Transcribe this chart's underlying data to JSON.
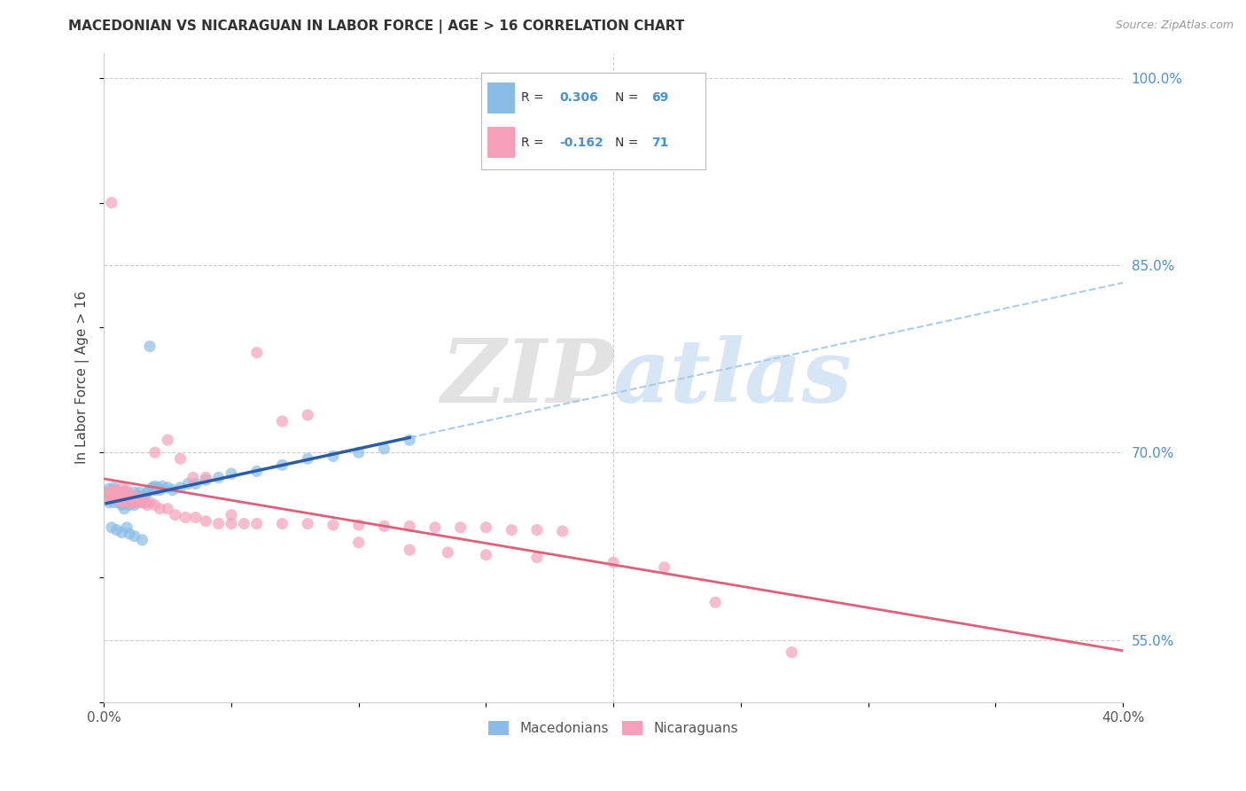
{
  "title": "MACEDONIAN VS NICARAGUAN IN LABOR FORCE | AGE > 16 CORRELATION CHART",
  "source": "Source: ZipAtlas.com",
  "ylabel": "In Labor Force | Age > 16",
  "xlim": [
    0.0,
    0.4
  ],
  "ylim": [
    0.5,
    1.02
  ],
  "xticks": [
    0.0,
    0.05,
    0.1,
    0.15,
    0.2,
    0.25,
    0.3,
    0.35,
    0.4
  ],
  "xticklabels": [
    "0.0%",
    "",
    "",
    "",
    "",
    "",
    "",
    "",
    "40.0%"
  ],
  "yticks_right": [
    0.55,
    0.7,
    0.85,
    1.0
  ],
  "ytick_labels_right": [
    "55.0%",
    "70.0%",
    "85.0%",
    "100.0%"
  ],
  "macedonian_color": "#89bde8",
  "nicaraguan_color": "#f5a0b8",
  "macedonian_line_color": "#2a5caa",
  "nicaraguan_line_color": "#e0607a",
  "dashed_line_color": "#a8ccee",
  "watermark_zip": "ZIP",
  "watermark_atlas": "atlas",
  "legend_items": [
    {
      "color": "#89bde8",
      "r": "R = ",
      "r_val": "0.306",
      "n": "  N = ",
      "n_val": "69"
    },
    {
      "color": "#f5a0b8",
      "r": "R = ",
      "r_val": "-0.162",
      "n": "  N = ",
      "n_val": "71"
    }
  ],
  "mac_x": [
    0.001,
    0.002,
    0.002,
    0.003,
    0.003,
    0.004,
    0.004,
    0.004,
    0.005,
    0.005,
    0.005,
    0.006,
    0.006,
    0.006,
    0.007,
    0.007,
    0.007,
    0.008,
    0.008,
    0.008,
    0.009,
    0.009,
    0.009,
    0.01,
    0.01,
    0.01,
    0.011,
    0.011,
    0.012,
    0.012,
    0.012,
    0.013,
    0.013,
    0.014,
    0.014,
    0.015,
    0.015,
    0.016,
    0.017,
    0.018,
    0.019,
    0.02,
    0.02,
    0.021,
    0.022,
    0.023,
    0.025,
    0.027,
    0.03,
    0.033,
    0.036,
    0.04,
    0.045,
    0.05,
    0.06,
    0.07,
    0.08,
    0.09,
    0.1,
    0.11,
    0.12,
    0.003,
    0.005,
    0.007,
    0.009,
    0.01,
    0.012,
    0.015,
    0.018
  ],
  "mac_y": [
    0.668,
    0.671,
    0.66,
    0.665,
    0.668,
    0.665,
    0.66,
    0.672,
    0.665,
    0.663,
    0.668,
    0.66,
    0.665,
    0.668,
    0.658,
    0.663,
    0.668,
    0.655,
    0.66,
    0.665,
    0.66,
    0.663,
    0.668,
    0.658,
    0.662,
    0.665,
    0.66,
    0.665,
    0.658,
    0.663,
    0.668,
    0.66,
    0.665,
    0.663,
    0.668,
    0.66,
    0.665,
    0.665,
    0.668,
    0.67,
    0.672,
    0.67,
    0.673,
    0.672,
    0.67,
    0.673,
    0.672,
    0.67,
    0.672,
    0.675,
    0.675,
    0.678,
    0.68,
    0.683,
    0.685,
    0.69,
    0.695,
    0.697,
    0.7,
    0.703,
    0.71,
    0.64,
    0.638,
    0.636,
    0.64,
    0.635,
    0.633,
    0.63,
    0.785
  ],
  "nic_x": [
    0.001,
    0.002,
    0.003,
    0.003,
    0.004,
    0.004,
    0.005,
    0.005,
    0.006,
    0.006,
    0.007,
    0.007,
    0.008,
    0.008,
    0.009,
    0.01,
    0.01,
    0.011,
    0.012,
    0.013,
    0.014,
    0.015,
    0.016,
    0.017,
    0.018,
    0.02,
    0.022,
    0.025,
    0.028,
    0.032,
    0.036,
    0.04,
    0.045,
    0.05,
    0.055,
    0.06,
    0.07,
    0.08,
    0.09,
    0.1,
    0.11,
    0.12,
    0.13,
    0.14,
    0.15,
    0.16,
    0.17,
    0.18,
    0.003,
    0.005,
    0.007,
    0.009,
    0.015,
    0.02,
    0.025,
    0.03,
    0.035,
    0.04,
    0.05,
    0.06,
    0.07,
    0.08,
    0.1,
    0.12,
    0.135,
    0.15,
    0.17,
    0.2,
    0.22,
    0.24,
    0.27
  ],
  "nic_y": [
    0.668,
    0.665,
    0.668,
    0.663,
    0.665,
    0.67,
    0.663,
    0.668,
    0.665,
    0.668,
    0.66,
    0.665,
    0.662,
    0.665,
    0.663,
    0.66,
    0.665,
    0.66,
    0.665,
    0.66,
    0.663,
    0.662,
    0.66,
    0.658,
    0.66,
    0.658,
    0.655,
    0.655,
    0.65,
    0.648,
    0.648,
    0.645,
    0.643,
    0.643,
    0.643,
    0.643,
    0.643,
    0.643,
    0.642,
    0.642,
    0.641,
    0.641,
    0.64,
    0.64,
    0.64,
    0.638,
    0.638,
    0.637,
    0.9,
    0.665,
    0.672,
    0.67,
    0.66,
    0.7,
    0.71,
    0.695,
    0.68,
    0.68,
    0.65,
    0.78,
    0.725,
    0.73,
    0.628,
    0.622,
    0.62,
    0.618,
    0.616,
    0.612,
    0.608,
    0.58,
    0.54
  ]
}
